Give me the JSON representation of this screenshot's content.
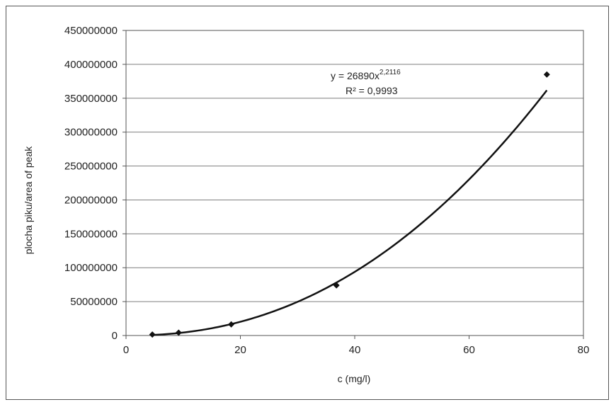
{
  "chart_data": {
    "type": "scatter",
    "title": "",
    "xlabel": "c (mg/l)",
    "ylabel": "plocha piku/area  of peak",
    "xlim": [
      0,
      80
    ],
    "ylim": [
      0,
      450000000
    ],
    "x_ticks": [
      "0",
      "20",
      "40",
      "60",
      "80"
    ],
    "y_ticks": [
      "0",
      "50000000",
      "100000000",
      "150000000",
      "200000000",
      "250000000",
      "300000000",
      "350000000",
      "400000000",
      "450000000"
    ],
    "grid": "horizontal",
    "legend": "none",
    "series": [
      {
        "x": [
          4.6,
          9.2,
          18.4,
          36.8,
          73.6
        ],
        "y": [
          1500000,
          4200000,
          16500000,
          74000000,
          385000000
        ]
      }
    ],
    "trendline": {
      "type": "power",
      "coefficient": 26890,
      "exponent": 2.2116,
      "x_range": [
        4.6,
        73.6
      ]
    },
    "annotations": {
      "equation_prefix": "y = 26890x",
      "equation_exponent": "2,2116",
      "r_squared": "R² = 0,9993"
    },
    "colors": {
      "marker": "#111111",
      "trendline": "#111111",
      "grid": "#7f7f7f",
      "axis": "#555555"
    }
  }
}
